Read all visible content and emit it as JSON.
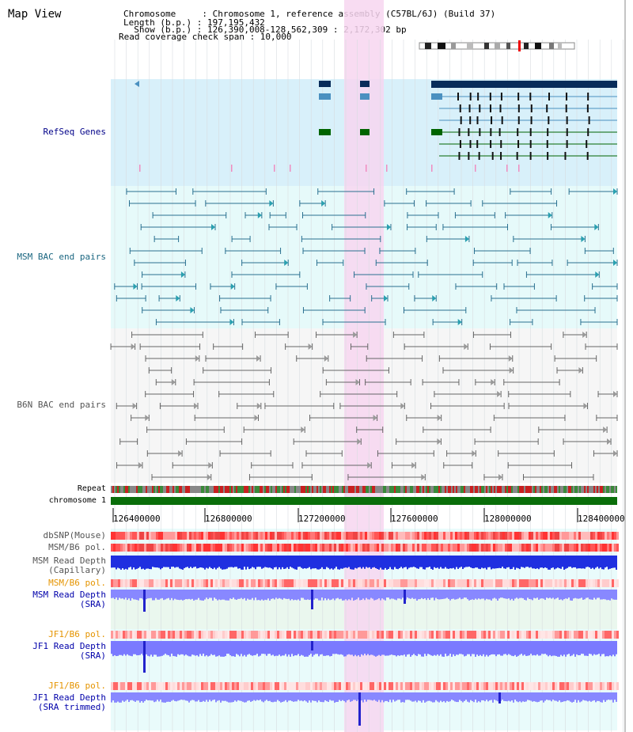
{
  "view_title": "Map View",
  "header": {
    "chromosome_line": "Chromosome     : Chromosome 1, reference assembly (C57BL/6J) (Build 37)",
    "length_line": "Length (b.p.) : 197,195,432",
    "show_line": "  Show (b.p.) : 126,390,008-128,562,309 : 2,172,302 bp",
    "coverage_line": "Read coverage check span : 10,000"
  },
  "tracks": {
    "refseq_genes": "RefSeq Genes",
    "msm_bac": "MSM BAC end pairs",
    "b6n_bac": "B6N BAC end pairs",
    "repeat": "Repeat",
    "chromosome": "chromosome 1",
    "dbsnp": "dbSNP(Mouse)",
    "msm_b6_pol_1": "MSM/B6 pol.",
    "msm_depth_cap_1": "MSM Read Depth",
    "msm_depth_cap_2": "(Capillary)",
    "msm_b6_pol_2": "MSM/B6 pol.",
    "msm_depth_sra_1": "MSM Read Depth",
    "msm_depth_sra_2": "(SRA)",
    "jf1_b6_pol_1": "JF1/B6 pol.",
    "jf1_depth_sra_1": "JF1 Read Depth",
    "jf1_depth_sra_2": "(SRA)",
    "jf1_b6_pol_2": "JF1/B6 pol.",
    "jf1_depth_trim_1": "JF1 Read Depth",
    "jf1_depth_trim_2": "(SRA trimmed)"
  },
  "axis_ticks": [
    "126400000",
    "126800000",
    "127200000",
    "127600000",
    "128000000",
    "128400000"
  ],
  "colors": {
    "refseq_bg": "#d8f0fa",
    "bac_bg": "#e6fafa",
    "highlight": "#f7d6f0",
    "chromosome_bar": "#0a6e0a",
    "gene_dark": "#082c5a",
    "gene_light": "#4a90c0",
    "gene_green": "#006400",
    "msm_line": "#2a7090",
    "b6n_line": "#666666",
    "depth_blue": "#0000dd",
    "depth_light": "#7777ff",
    "snp_red": "#ff4444"
  }
}
